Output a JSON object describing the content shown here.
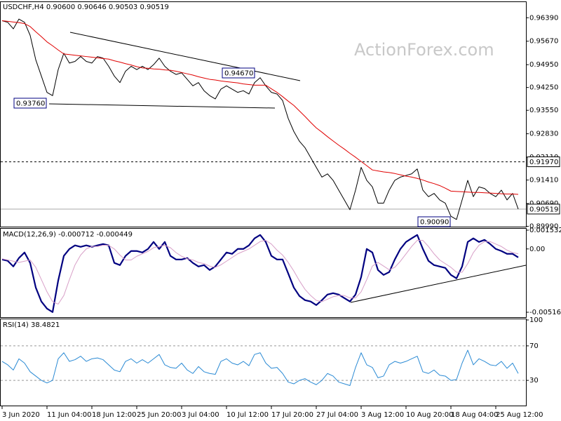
{
  "watermark": "ActionForex.com",
  "chart_data": [
    {
      "type": "line",
      "title": "USDCHF,H4 0.90600 0.90646 0.90503 0.90519",
      "categories": [
        "3 Jun 2020",
        null,
        null,
        null,
        null,
        null,
        null,
        null,
        "11 Jun 04:00",
        null,
        null,
        null,
        null,
        null,
        null,
        null,
        "18 Jun 12:00",
        null,
        null,
        null,
        null,
        null,
        null,
        null,
        "25 Jun 20:00",
        null,
        null,
        null,
        null,
        null,
        null,
        null,
        "3 Jul 04:00",
        null,
        null,
        null,
        null,
        null,
        null,
        null,
        "10 Jul 12:00",
        null,
        null,
        null,
        null,
        null,
        null,
        null,
        "17 Jul 20:00",
        null,
        null,
        null,
        null,
        null,
        null,
        null,
        "27 Jul 04:00",
        null,
        null,
        null,
        null,
        null,
        null,
        null,
        "3 Aug 12:00",
        null,
        null,
        null,
        null,
        null,
        null,
        null,
        "10 Aug 20:00",
        null,
        null,
        null,
        null,
        null,
        null,
        null,
        "18 Aug 04:00",
        null,
        null,
        null,
        null,
        null,
        null,
        null,
        "25 Aug 12:00",
        null,
        null,
        null,
        null
      ],
      "series": [
        {
          "color": "#000000",
          "values": [
            0.963,
            0.9625,
            0.9605,
            0.9635,
            0.9625,
            0.9585,
            0.951,
            0.946,
            0.941,
            0.94,
            0.948,
            0.953,
            0.95,
            0.9505,
            0.952,
            0.9505,
            0.95,
            0.952,
            0.9515,
            0.949,
            0.946,
            0.944,
            0.9475,
            0.949,
            0.948,
            0.949,
            0.948,
            0.9495,
            0.9515,
            0.949,
            0.9475,
            0.9465,
            0.947,
            0.945,
            0.943,
            0.944,
            0.9415,
            0.94,
            0.939,
            0.942,
            0.943,
            0.942,
            0.941,
            0.9415,
            0.9405,
            0.944,
            0.9455,
            0.943,
            0.941,
            0.9405,
            0.9385,
            0.933,
            0.929,
            0.926,
            0.924,
            0.921,
            0.918,
            0.915,
            0.916,
            0.914,
            0.911,
            0.908,
            0.905,
            0.911,
            0.918,
            0.914,
            0.912,
            0.907,
            0.907,
            0.911,
            0.914,
            0.915,
            0.9155,
            0.916,
            0.9175,
            0.911,
            0.909,
            0.91,
            0.908,
            0.907,
            0.903,
            0.902,
            0.908,
            0.914,
            0.909,
            0.912,
            0.9115,
            0.91,
            0.909,
            0.911,
            0.908,
            0.91,
            0.9052
          ]
        },
        {
          "color": "#e00000",
          "values": [
            0.963,
            0.9628,
            0.9626,
            0.9624,
            0.9621,
            0.9612,
            0.9596,
            0.9581,
            0.9565,
            0.9553,
            0.954,
            0.9528,
            0.9526,
            0.9524,
            0.9522,
            0.952,
            0.9518,
            0.9516,
            0.9514,
            0.9512,
            0.9507,
            0.9503,
            0.9498,
            0.9494,
            0.9489,
            0.9485,
            0.9484,
            0.9482,
            0.9481,
            0.9479,
            0.9478,
            0.9475,
            0.9471,
            0.9467,
            0.9463,
            0.9458,
            0.9454,
            0.945,
            0.9448,
            0.9445,
            0.9443,
            0.9441,
            0.9439,
            0.9436,
            0.9434,
            0.9432,
            0.9432,
            0.9432,
            0.9421,
            0.941,
            0.9397,
            0.9383,
            0.937,
            0.9353,
            0.9336,
            0.9318,
            0.9301,
            0.9288,
            0.9274,
            0.9261,
            0.9248,
            0.9236,
            0.9223,
            0.9211,
            0.9198,
            0.9185,
            0.9172,
            0.9169,
            0.9166,
            0.9164,
            0.9161,
            0.9157,
            0.9153,
            0.915,
            0.9146,
            0.9141,
            0.9135,
            0.913,
            0.9124,
            0.9116,
            0.9107,
            0.9106,
            0.9105,
            0.9104,
            0.9103,
            0.9103,
            0.9102,
            0.9101,
            0.91,
            0.9099,
            0.9098,
            0.9098,
            0.9097
          ]
        }
      ],
      "ylim": [
        0.8998,
        0.9687
      ],
      "yticks": [
        {
          "value": 0.9639,
          "label": "0.96390"
        },
        {
          "value": 0.9567,
          "label": "0.95670"
        },
        {
          "value": 0.9495,
          "label": "0.94950"
        },
        {
          "value": 0.9425,
          "label": "0.94250"
        },
        {
          "value": 0.9355,
          "label": "0.93550"
        },
        {
          "value": 0.9283,
          "label": "0.92830"
        },
        {
          "value": 0.9211,
          "label": "0.92110"
        },
        {
          "value": 0.9141,
          "label": "0.91410"
        },
        {
          "value": 0.9069,
          "label": "0.90690"
        },
        {
          "value": 0.8999,
          "label": "0.89990"
        }
      ],
      "levels": [
        {
          "value": 0.9197,
          "label": "0.91970",
          "style": "dashed"
        },
        {
          "value": 0.90519,
          "label": "0.90519",
          "style": "solid"
        }
      ],
      "annotations": [
        "0.93760",
        "0.94670",
        "0.90090"
      ],
      "grid": false
    },
    {
      "type": "line",
      "title": "MACD(12,26,9) -0.000712 -0.000449",
      "series": [
        {
          "color": "#000080",
          "values": [
            -0.00086,
            -0.00097,
            -0.00143,
            -0.00074,
            -0.00029,
            -0.00114,
            -0.00315,
            -0.00429,
            -0.00487,
            -0.00515,
            -0.00258,
            -0.00057,
            0,
            0.00029,
            0.00017,
            0.00029,
            0.00017,
            0.00029,
            0.0004,
            0.00029,
            -0.00114,
            -0.00132,
            -0.00057,
            -0.00017,
            -0.00017,
            -0.00029,
            0,
            0.00057,
            0,
            0.00057,
            -0.00057,
            -0.00086,
            -0.00086,
            -0.00074,
            -0.00114,
            -0.00143,
            -0.00132,
            -0.00172,
            -0.00143,
            -0.00086,
            -0.00029,
            -0.0004,
            0,
            0,
            0.00029,
            0.00086,
            0.00114,
            0.00057,
            -0.00057,
            -0.00086,
            -0.00086,
            -0.002,
            -0.00315,
            -0.00384,
            -0.00418,
            -0.00429,
            -0.00458,
            -0.00418,
            -0.00372,
            -0.00361,
            -0.00372,
            -0.00401,
            -0.00429,
            -0.00372,
            -0.00229,
            0,
            -0.00029,
            -0.00172,
            -0.00212,
            -0.00189,
            -0.00086,
            0,
            0.00057,
            0.00086,
            0.00114,
            0,
            -0.00097,
            -0.00132,
            -0.00143,
            -0.00155,
            -0.00212,
            -0.0024,
            -0.00143,
            0.00057,
            0.00086,
            0.00057,
            0.00074,
            0.0004,
            0,
            -0.00017,
            -0.0004,
            -0.0004,
            -0.00069
          ]
        },
        {
          "color": "#d8a0c8",
          "values": [
            -0.0008,
            -0.0009,
            -0.001,
            -0.0011,
            -0.001,
            -0.0009,
            -0.0015,
            -0.0025,
            -0.0035,
            -0.0043,
            -0.0045,
            -0.0038,
            -0.0025,
            -0.0013,
            -0.0005,
            0,
            0.0002,
            0.0002,
            0.0003,
            0.0003,
            0,
            -0.0005,
            -0.0009,
            -0.0009,
            -0.0006,
            -0.0004,
            -0.0002,
            0.0001,
            0.0002,
            0.0003,
            0.0001,
            -0.0003,
            -0.0006,
            -0.0008,
            -0.0009,
            -0.0011,
            -0.0012,
            -0.0014,
            -0.0015,
            -0.0013,
            -0.001,
            -0.0007,
            -0.0004,
            -0.0002,
            0,
            0.0003,
            0.0006,
            0.0007,
            0.0004,
            -0.0001,
            -0.0005,
            -0.0011,
            -0.0018,
            -0.0026,
            -0.0033,
            -0.0038,
            -0.0042,
            -0.0043,
            -0.0041,
            -0.0039,
            -0.0038,
            -0.0038,
            -0.004,
            -0.004,
            -0.0035,
            -0.0025,
            -0.0014,
            -0.0011,
            -0.0014,
            -0.0017,
            -0.0015,
            -0.001,
            -0.0004,
            0.0002,
            0.0007,
            0.0007,
            0.0002,
            -0.0004,
            -0.0009,
            -0.0012,
            -0.0015,
            -0.0019,
            -0.0019,
            -0.0012,
            -0.0003,
            0.0003,
            0.0006,
            0.0006,
            0.0004,
            0.0002,
            -0.0001,
            -0.0003,
            -0.0004
          ]
        }
      ],
      "ylim": [
        -0.005164,
        0.001532
      ],
      "yticks": [
        0.001532,
        {
          "value": 0,
          "label": "0.00"
        },
        -0.005164
      ],
      "grid": false
    },
    {
      "type": "line",
      "title": "RSI(14) 38.4821",
      "series": [
        {
          "color": "#2a8ad4",
          "values": [
            52,
            48,
            42,
            55,
            50,
            40,
            35,
            30,
            27,
            30,
            55,
            62,
            52,
            54,
            58,
            52,
            55,
            56,
            54,
            48,
            42,
            40,
            52,
            55,
            50,
            54,
            50,
            55,
            60,
            48,
            45,
            44,
            50,
            42,
            38,
            46,
            40,
            38,
            37,
            52,
            55,
            50,
            48,
            52,
            47,
            60,
            62,
            50,
            44,
            45,
            38,
            28,
            26,
            30,
            32,
            28,
            25,
            30,
            38,
            35,
            28,
            26,
            24,
            45,
            62,
            48,
            45,
            33,
            35,
            48,
            52,
            50,
            52,
            55,
            58,
            40,
            38,
            42,
            36,
            35,
            30,
            31,
            50,
            65,
            48,
            55,
            52,
            48,
            47,
            52,
            44,
            50,
            38
          ]
        }
      ],
      "ylim": [
        0,
        100
      ],
      "yticks": [
        100,
        70,
        30
      ],
      "grid": true
    }
  ]
}
